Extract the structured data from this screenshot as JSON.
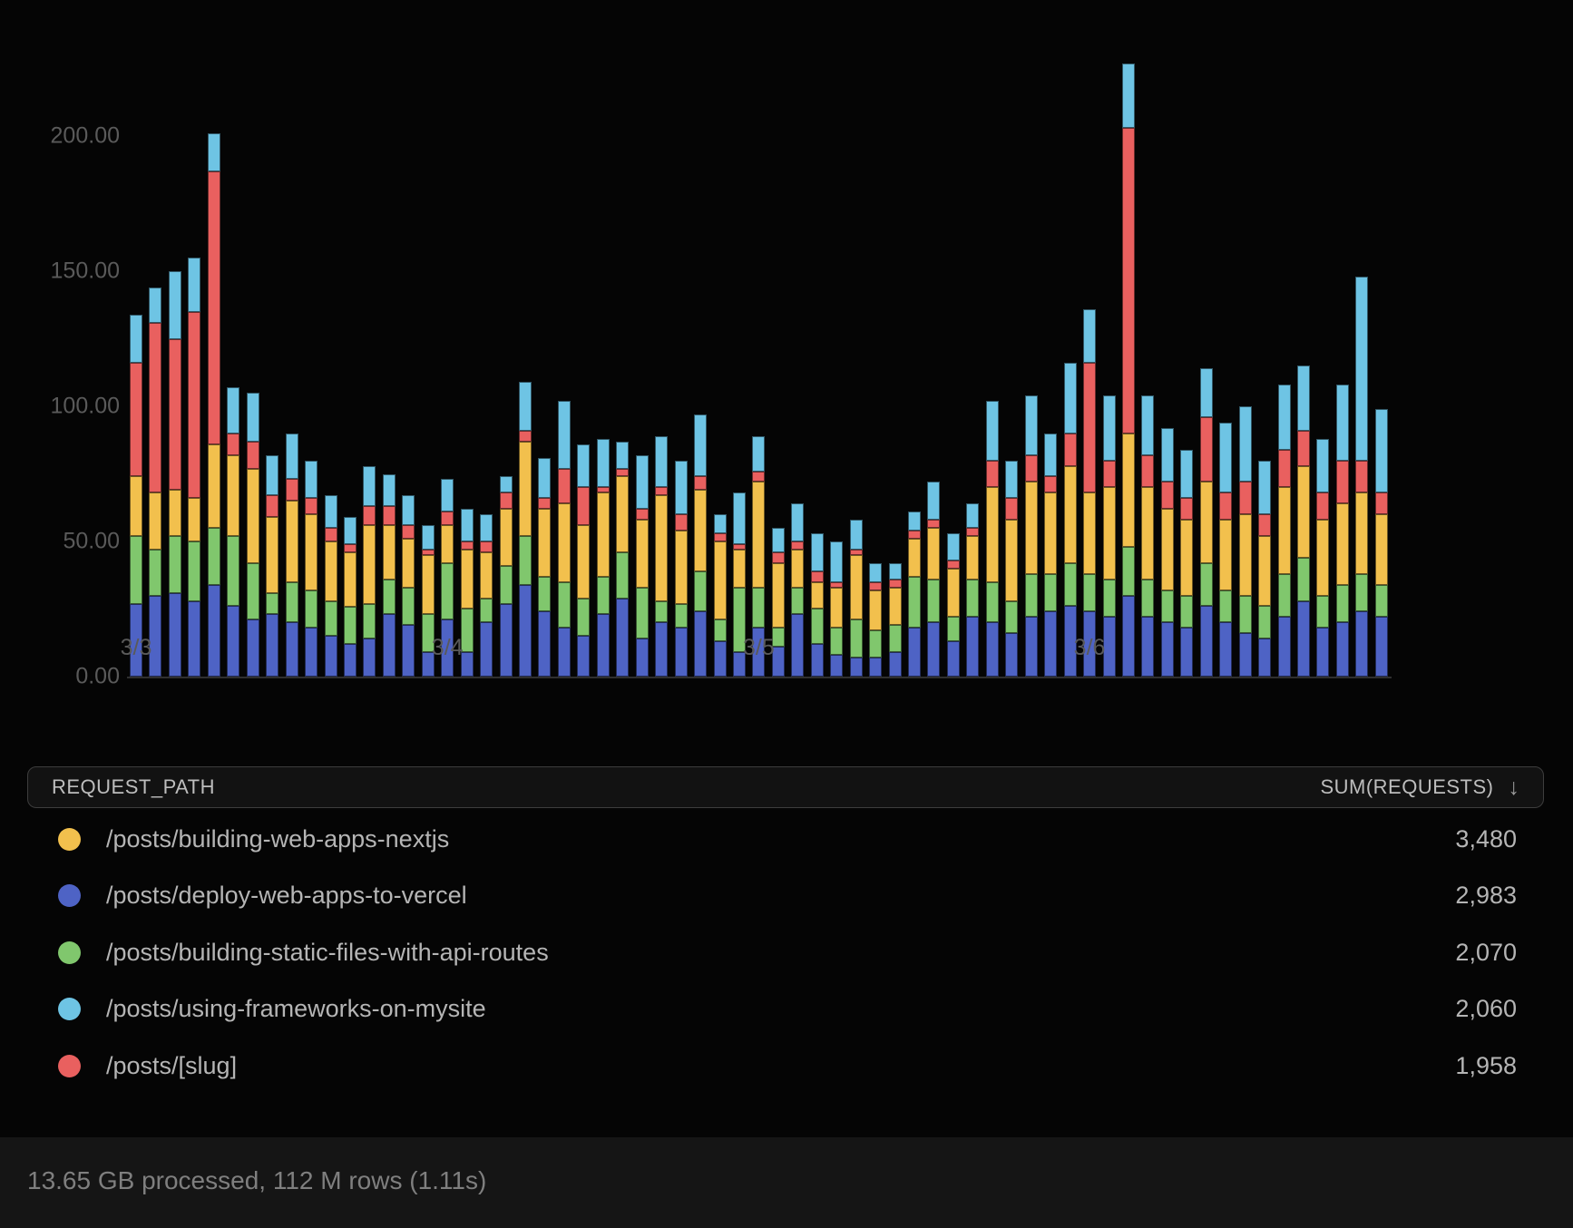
{
  "chart_data": {
    "type": "bar",
    "stacked": true,
    "title": "",
    "xlabel": "",
    "ylabel": "",
    "ylim": [
      0,
      232
    ],
    "grid": false,
    "legend_position": "table-below",
    "y_ticks": [
      {
        "value": 0,
        "label": "0.00"
      },
      {
        "value": 50,
        "label": "50.00"
      },
      {
        "value": 100,
        "label": "100.00"
      },
      {
        "value": 150,
        "label": "150.00"
      },
      {
        "value": 200,
        "label": "200.00"
      }
    ],
    "x_ticks": [
      {
        "bar_index": 0,
        "label": "3/3"
      },
      {
        "bar_index": 16,
        "label": "3/4"
      },
      {
        "bar_index": 32,
        "label": "3/5"
      },
      {
        "bar_index": 49,
        "label": "3/6"
      }
    ],
    "series": [
      {
        "name": "/posts/deploy-web-apps-to-vercel",
        "color": "#4e63c5",
        "values": [
          27,
          30,
          31,
          28,
          34,
          26,
          21,
          23,
          20,
          18,
          15,
          12,
          14,
          23,
          19,
          9,
          21,
          9,
          20,
          27,
          34,
          24,
          18,
          15,
          23,
          29,
          14,
          20,
          18,
          24,
          13,
          9,
          18,
          11,
          23,
          12,
          8,
          7,
          7,
          9,
          18,
          20,
          13,
          22,
          20,
          16,
          22,
          24,
          26,
          24,
          22,
          30,
          22,
          20,
          18,
          26,
          20,
          16,
          14,
          22,
          28,
          18,
          20,
          24,
          22
        ]
      },
      {
        "name": "/posts/building-static-files-with-api-routes",
        "color": "#80c76d",
        "values": [
          25,
          17,
          21,
          22,
          21,
          26,
          21,
          8,
          15,
          14,
          13,
          14,
          13,
          13,
          14,
          14,
          21,
          16,
          9,
          14,
          18,
          13,
          17,
          14,
          14,
          17,
          19,
          8,
          9,
          15,
          8,
          24,
          15,
          7,
          10,
          13,
          10,
          14,
          10,
          10,
          19,
          16,
          9,
          14,
          15,
          12,
          16,
          14,
          16,
          14,
          14,
          18,
          14,
          12,
          12,
          16,
          12,
          14,
          12,
          16,
          16,
          12,
          14,
          14,
          12
        ]
      },
      {
        "name": "/posts/building-web-apps-nextjs",
        "color": "#f2c04d",
        "values": [
          22,
          21,
          17,
          16,
          31,
          30,
          35,
          28,
          30,
          28,
          22,
          20,
          29,
          20,
          18,
          22,
          14,
          22,
          17,
          21,
          35,
          25,
          29,
          27,
          31,
          28,
          25,
          39,
          27,
          30,
          29,
          14,
          39,
          24,
          14,
          10,
          15,
          24,
          15,
          14,
          14,
          19,
          18,
          16,
          35,
          30,
          34,
          30,
          36,
          30,
          34,
          42,
          34,
          30,
          28,
          30,
          26,
          30,
          26,
          32,
          34,
          28,
          30,
          30,
          26
        ]
      },
      {
        "name": "/posts/[slug]",
        "color": "#e9605f",
        "values": [
          42,
          63,
          56,
          69,
          101,
          8,
          10,
          8,
          8,
          6,
          5,
          3,
          7,
          7,
          5,
          2,
          5,
          3,
          4,
          6,
          4,
          4,
          13,
          14,
          2,
          3,
          4,
          3,
          6,
          5,
          3,
          2,
          4,
          4,
          3,
          4,
          2,
          2,
          3,
          3,
          3,
          3,
          3,
          3,
          10,
          8,
          10,
          6,
          12,
          48,
          10,
          113,
          12,
          10,
          8,
          24,
          10,
          12,
          8,
          14,
          13,
          10,
          16,
          12,
          8
        ]
      },
      {
        "name": "/posts/using-frameworks-on-mysite",
        "color": "#6ec4e4",
        "values": [
          18,
          13,
          25,
          20,
          14,
          17,
          18,
          15,
          17,
          14,
          12,
          10,
          15,
          12,
          11,
          9,
          12,
          12,
          10,
          6,
          18,
          15,
          25,
          16,
          18,
          10,
          20,
          19,
          20,
          23,
          7,
          19,
          13,
          9,
          14,
          14,
          15,
          11,
          7,
          6,
          7,
          14,
          10,
          9,
          22,
          14,
          22,
          16,
          26,
          20,
          24,
          24,
          22,
          20,
          18,
          18,
          26,
          28,
          20,
          24,
          24,
          20,
          28,
          68,
          31
        ]
      }
    ]
  },
  "table": {
    "header": {
      "path_label": "REQUEST_PATH",
      "value_label": "SUM(REQUESTS)",
      "sort_icon": "↓"
    },
    "rows": [
      {
        "path": "/posts/building-web-apps-nextjs",
        "value": "3,480",
        "color": "#f2c04d"
      },
      {
        "path": "/posts/deploy-web-apps-to-vercel",
        "value": "2,983",
        "color": "#4e63c5"
      },
      {
        "path": "/posts/building-static-files-with-api-routes",
        "value": "2,070",
        "color": "#80c76d"
      },
      {
        "path": "/posts/using-frameworks-on-mysite",
        "value": "2,060",
        "color": "#6ec4e4"
      },
      {
        "path": "/posts/[slug]",
        "value": "1,958",
        "color": "#e9605f"
      }
    ]
  },
  "footer": {
    "status": "13.65 GB processed, 112 M rows (1.11s)"
  },
  "layout_colors": {
    "background": "#050505",
    "axis_text": "#5a5a5a",
    "table_text": "#b5b5b5",
    "header_border": "#3d3d3d",
    "footer_text": "#7f7f7f"
  }
}
